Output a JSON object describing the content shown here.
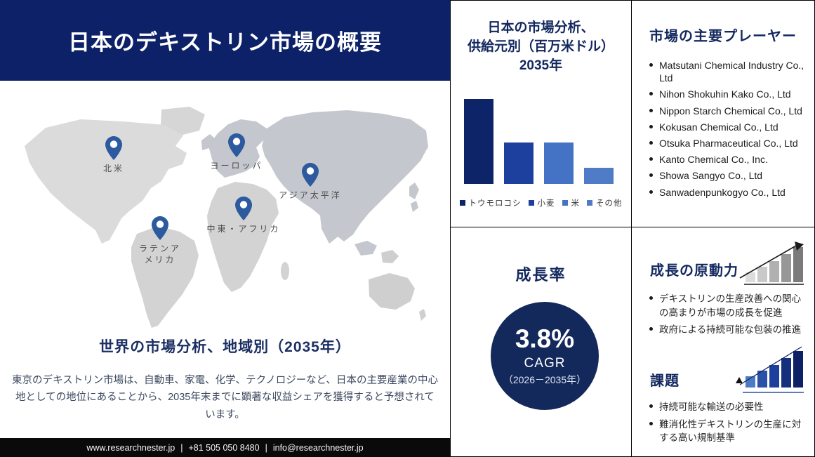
{
  "header": {
    "title": "日本のデキストリン市場の概要"
  },
  "map": {
    "regions": [
      {
        "label": "北米"
      },
      {
        "label": "ヨーロッパ"
      },
      {
        "label": "アジア太平洋"
      },
      {
        "label": "中東・アフリカ"
      },
      {
        "label": "ラテンアメリカ"
      }
    ]
  },
  "regional": {
    "heading": "世界の市場分析、地域別（2035年）",
    "body": "東京のデキストリン市場は、自動車、家電、化学、テクノロジーなど、日本の主要産業の中心地としての地位にあることから、2035年末までに顕著な収益シェアを獲得すると予想されています。"
  },
  "footer": {
    "website": "www.researchnester.jp",
    "phone": "+81 505 050 8480",
    "email": "info@researchnester.jp",
    "separator": "|"
  },
  "supply_panel": {
    "title_lines": [
      "日本の市場分析、",
      "供給元別（百万米ドル）",
      "2035年"
    ]
  },
  "chart_data": {
    "type": "bar",
    "title": "日本の市場分析、供給元別（百万米ドル）2035年",
    "categories": [
      "トウモロコシ",
      "小麦",
      "米",
      "その他"
    ],
    "values": [
      100,
      49,
      49,
      19
    ],
    "values_note": "relative bar heights; value axis not labeled in source",
    "colors": [
      "#0e2468",
      "#1d409e",
      "#4472c4",
      "#4f7bc7"
    ],
    "legend_position": "bottom",
    "value_axis": "hidden"
  },
  "players_panel": {
    "title": "市場の主要プレーヤー",
    "items": [
      "Matsutani Chemical Industry Co., Ltd",
      "Nihon Shokuhin Kako Co., Ltd",
      "Nippon Starch Chemical Co., Ltd",
      "Kokusan Chemical Co., Ltd",
      "Otsuka Pharmaceutical Co., Ltd",
      "Kanto Chemical Co., Inc.",
      "Showa Sangyo Co., Ltd",
      "Sanwadenpunkogyo Co., Ltd"
    ]
  },
  "growth_panel": {
    "title": "成長率",
    "rate": "3.8%",
    "cagr_label": "CAGR",
    "period": "（2026－2035年）"
  },
  "drivers_panel": {
    "title": "成長の原動力",
    "items": [
      "デキストリンの生産改善への関心の高まりが市場の成長を促進",
      "政府による持続可能な包装の推進"
    ]
  },
  "challenges_panel": {
    "title": "課題",
    "items": [
      "持続可能な輸送の必要性",
      "難消化性デキストリンの生産に対する高い規制基準"
    ]
  },
  "colors": {
    "header_navy": "#0c2167",
    "circle_navy": "#14295b",
    "title_navy": "#13285f",
    "pin_blue": "#2d5a9e",
    "footer_black": "#0a0a0a",
    "map_light": "#d8d8d8",
    "map_dark": "#c4c7cd"
  }
}
